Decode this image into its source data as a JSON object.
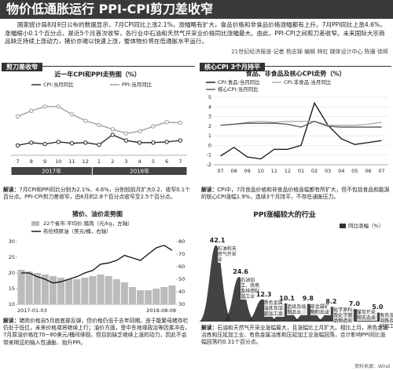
{
  "header": {
    "title": "物价低通胀运行 PPI-CPI剪刀差收窄"
  },
  "intro": "国家统计局8月9日公布的数据显示，7月CPI同比上涨2.1%，涨幅略有扩大，食品价格和非食品价格涨幅都有上升。7月PPI同比上涨4.6%，涨幅缩小0.1个百分点，是近5个月首次收窄，各行业中石油和天然气开采业价格同比涨幅最大。由此，PPI-CPI之间剪刀差收窄。未来国际大宗商品缺乏持续上涨动力，猪价亦难以快速上涨，整体物价将在低通胀水平运行。",
  "byline": "21世纪经济报道-记者 杨志锦 编辑 林虹 媒体设计中心 陈珊 徐辉",
  "sections": [
    {
      "label": "剪刀差收窄"
    },
    {
      "label": "核心CPI 3个月持平"
    }
  ],
  "notes": [
    {
      "label": "解读：",
      "text": "7月CPI和PPI同比分别为2.1%、4.6%，分别较前月扩大0.2、收窄0.1个百分点。PPI-CPI剪刀差收窄，由6月的2.8个百分点收窄至2.5个百分点。"
    },
    {
      "label": "解读：",
      "text": "CPI中，7月食品价格和非食品价格涨幅都有所扩大，但不包括食品和能源的核心CPI涨幅1.9%，连续3个月持平，不存在通胀压力。"
    },
    {
      "label": "解读：",
      "text": "猪肉价格自5月底底部反弹，但价格仍低于去年同期。由于能繁母猪存栏仍处于低位，未来价格或将继续上行；油价方面，受中东地缘政治等因素冲击，7月原油价格在70~80美元/桶间徘徊，但目前缺乏继续上涨的动力，因此不会带来明显的输入性通胀、抬升PPI。"
    },
    {
      "label": "解读：",
      "text": "石油和天然气开采业涨幅最大，且涨幅比上月扩大。相比上月，黑色金属冶炼和压延加工业、有色金属冶炼和压延加工业涨幅回落，合计影响PPI同比涨幅回落约0.31个百分点。"
    }
  ],
  "source": "资料来源：Wind",
  "chart_data": [
    {
      "type": "line",
      "title": "近一年CPI和PPI走势图（%）",
      "categories": [
        "7",
        "8",
        "9",
        "10",
        "11",
        "12",
        "1",
        "2",
        "3",
        "4",
        "5",
        "6",
        "7"
      ],
      "year_labels": [
        "2017年",
        "2018年"
      ],
      "ylim": [
        0,
        8
      ],
      "markers": true,
      "grid": false,
      "series": [
        {
          "name": "CPI:当月同比",
          "color": "#222222",
          "values": [
            1.4,
            1.8,
            1.6,
            1.9,
            1.7,
            1.8,
            1.5,
            2.9,
            2.1,
            1.8,
            1.8,
            1.9,
            2.1
          ]
        },
        {
          "name": "PPI:当月同比",
          "color": "#999999",
          "values": [
            5.5,
            6.3,
            6.9,
            6.9,
            5.8,
            4.9,
            4.3,
            3.7,
            3.1,
            3.4,
            4.1,
            4.7,
            4.6
          ]
        }
      ]
    },
    {
      "type": "line",
      "title": "食品、非食品及核心CPI走势（%）",
      "categories": [
        "07",
        "08",
        "09",
        "10",
        "11",
        "12",
        "01",
        "02",
        "03",
        "04",
        "05",
        "06",
        "07"
      ],
      "ylim": [
        -2,
        5
      ],
      "yticks": [
        -2,
        -1,
        0,
        1,
        2,
        3,
        4,
        5
      ],
      "grid": true,
      "markers": false,
      "series": [
        {
          "name": "CPI:食品:当月同比",
          "color": "#111111",
          "values": [
            -1.1,
            -0.2,
            -1.2,
            -1.4,
            -0.4,
            -0.4,
            0.0,
            4.4,
            2.1,
            0.7,
            0.1,
            0.3,
            0.5
          ]
        },
        {
          "name": "CPI:非食品:当月同比",
          "color": "#aaaaaa",
          "values": [
            2.1,
            2.2,
            2.4,
            2.5,
            2.4,
            2.5,
            2.5,
            2.5,
            2.1,
            2.1,
            2.1,
            2.2,
            2.4
          ]
        },
        {
          "name": "核心CPI:当月同比",
          "color": "#555555",
          "values": [
            2.1,
            2.2,
            2.3,
            2.3,
            2.3,
            2.2,
            1.9,
            2.5,
            2.0,
            1.9,
            1.9,
            1.9,
            1.9
          ]
        }
      ]
    },
    {
      "type": "line",
      "title": "猪价、油价走势图",
      "categories": [
        "2017-01-03",
        null,
        null,
        null,
        null,
        null,
        null,
        null,
        null,
        null,
        null,
        null,
        null,
        null,
        null,
        null,
        null,
        null,
        null,
        "2018-08-08"
      ],
      "ylim": [
        10,
        30
      ],
      "yticks": [
        10,
        15,
        20,
        25,
        30
      ],
      "y2lim": [
        30,
        80
      ],
      "y2ticks": [
        30,
        40,
        50,
        60,
        70,
        80
      ],
      "grid": false,
      "markers": false,
      "series": [
        {
          "name": "22个省市:平均价:猪肉（元/kg，左轴）",
          "color": "#bbbbbb",
          "kind": "bar",
          "values": [
            21,
            20.5,
            20,
            19.5,
            19,
            18.5,
            18,
            18,
            18.5,
            19,
            19.5,
            19,
            18,
            17,
            15.5,
            14.5,
            14.5,
            15,
            15.5,
            16
          ]
        },
        {
          "name": "布伦特原油（美元/桶，右轴）",
          "color": "#111111",
          "axis": "y2",
          "values": [
            55,
            55,
            52,
            50,
            47,
            48,
            50,
            52,
            55,
            57,
            62,
            63,
            65,
            69,
            67,
            65,
            70,
            75,
            77,
            73
          ]
        }
      ]
    },
    {
      "type": "bar",
      "title": "PPI涨幅较大的行业",
      "ylim": [
        0,
        45
      ],
      "color": "#333333",
      "series": [
        {
          "name": "同比涨幅（%）",
          "color": "#333333",
          "values": [
            42.1,
            24.6,
            12.3,
            10.1,
            9.8,
            8.2,
            7.0,
            5.0
          ]
        }
      ],
      "value_labels": [
        "42.1",
        "24.6",
        "12.3",
        "10.1",
        "9.8",
        "8.2",
        "7.0",
        "5.0"
      ],
      "categories": [
        "石油和天然气开采业",
        "石油加工、炼焦及核燃料加工业",
        "黑色金属冶炼及压延加工业",
        "造纸及纸制品业",
        "非金属矿物制品业",
        "化学原料及化学制品制造业",
        "煤炭开采和洗选业",
        "有色金属冶炼及压延加工业"
      ]
    }
  ]
}
